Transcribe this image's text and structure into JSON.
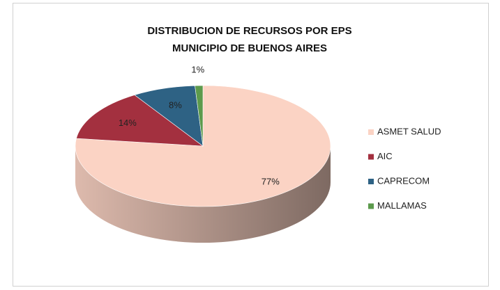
{
  "chart_data": {
    "type": "pie",
    "title": [
      "DISTRIBUCION DE RECURSOS POR EPS",
      "MUNICIPIO DE BUENOS AIRES"
    ],
    "categories": [
      "ASMET SALUD",
      "AIC",
      "CAPRECOM",
      "MALLAMAS"
    ],
    "values": [
      77,
      14,
      8,
      1
    ],
    "value_labels": [
      "77%",
      "14%",
      "8%",
      "1%"
    ],
    "colors": [
      "#fbd3c4",
      "#a3303f",
      "#2e6284",
      "#5c9a4c"
    ],
    "legend": "right"
  }
}
